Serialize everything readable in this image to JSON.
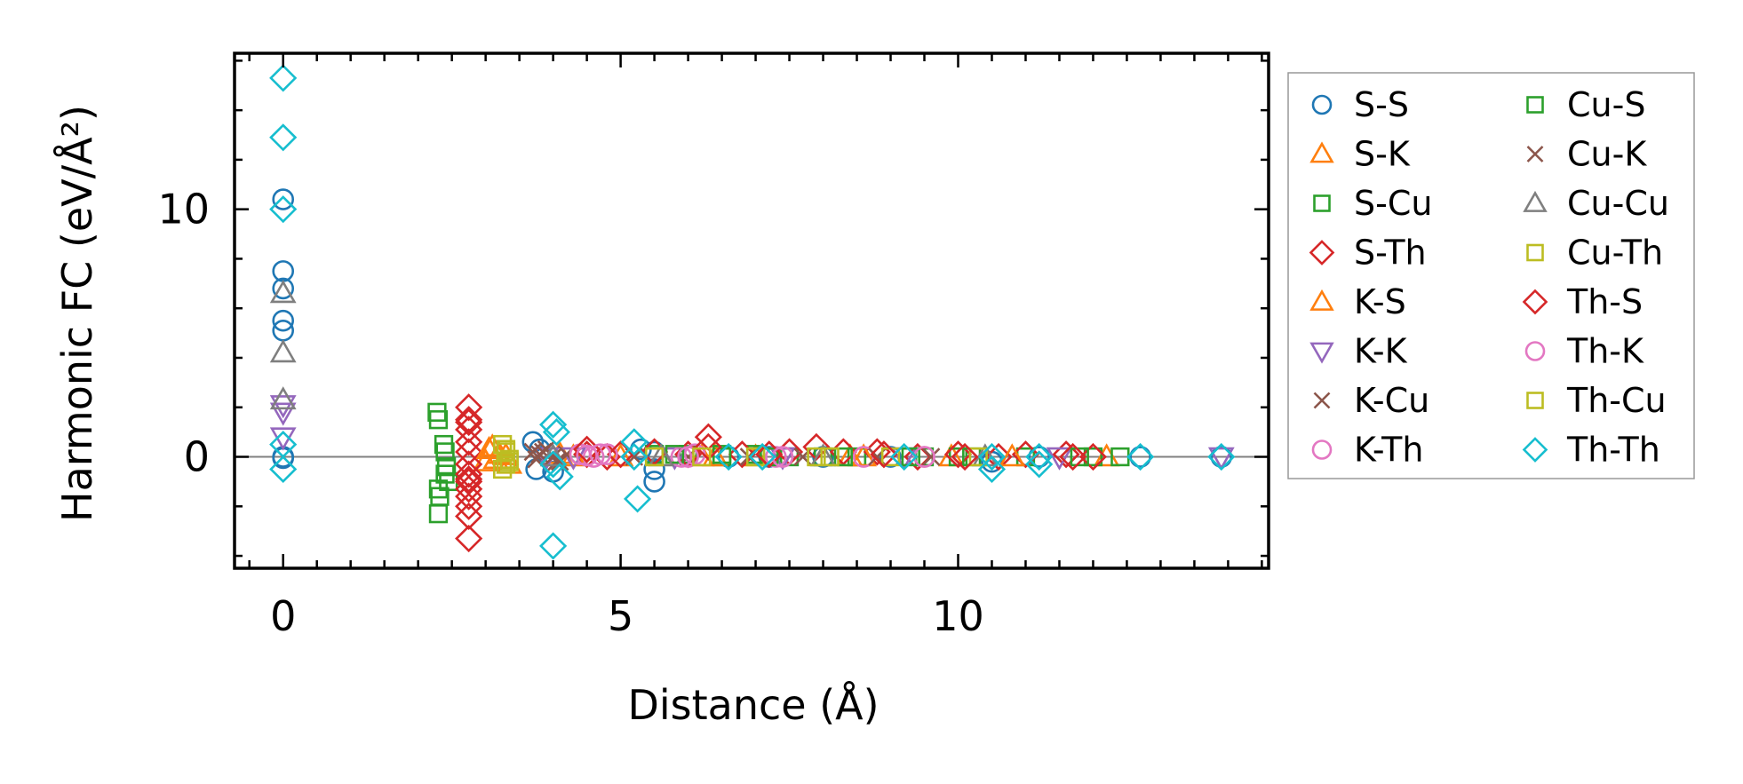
{
  "chart_data": {
    "type": "scatter",
    "title": "",
    "xlabel": "Distance (Å)",
    "ylabel": "Harmonic FC (eV/Å²)",
    "xlim": [
      -0.72,
      14.6
    ],
    "ylim": [
      -4.5,
      16.3
    ],
    "xticks": [
      0,
      5,
      10
    ],
    "yticks": [
      0,
      10
    ],
    "xtick_labels": [
      "0",
      "5",
      "10"
    ],
    "ytick_labels": [
      "0",
      "10"
    ],
    "zero_line": true,
    "grid": false,
    "legend_position": "right-outside",
    "legend_columns": 2,
    "series": [
      {
        "name": "S-S",
        "marker": "circle",
        "color": "#1f77b4",
        "x": [
          0,
          0,
          0,
          0,
          0,
          0,
          0,
          3.7,
          3.75,
          3.8,
          4.0,
          5.3,
          5.5,
          5.5,
          5.5,
          6.6,
          7.2,
          8.0,
          9.0,
          10.5,
          11.2,
          12.7,
          13.9
        ],
        "y": [
          10.4,
          7.5,
          6.8,
          5.5,
          5.1,
          0,
          -0.05,
          0.6,
          -0.5,
          0.3,
          -0.6,
          0.3,
          -0.5,
          -1.0,
          0.2,
          0,
          0,
          0,
          0,
          -0.2,
          0,
          0,
          0
        ]
      },
      {
        "name": "S-K",
        "marker": "triangle-up",
        "color": "#ff7f0e",
        "x": [
          3.0,
          3.1,
          3.2,
          3.35,
          4.1,
          5.0,
          6.2,
          7.0,
          8.4,
          9.9,
          12.2
        ],
        "y": [
          -0.2,
          0.4,
          0.1,
          -0.3,
          0.1,
          0,
          0,
          0,
          0,
          0,
          0
        ]
      },
      {
        "name": "S-Cu",
        "marker": "square",
        "color": "#2ca02c",
        "x": [
          2.28,
          2.3,
          2.3,
          2.32,
          2.3,
          2.38,
          2.4,
          2.42,
          2.4,
          2.45,
          5.5,
          6.0,
          6.5,
          7.0,
          7.5,
          8.0,
          8.5,
          9.5,
          10.0,
          11.0,
          12.0
        ],
        "y": [
          1.8,
          1.5,
          -1.3,
          -1.6,
          -2.3,
          0.5,
          0.2,
          -0.4,
          -0.7,
          -1.0,
          0.1,
          0.1,
          0,
          0.1,
          0,
          0,
          0,
          0,
          0,
          0,
          0
        ]
      },
      {
        "name": "S-Th",
        "marker": "diamond",
        "color": "#d62728",
        "x": [
          2.75,
          2.75,
          2.75,
          2.75,
          2.75,
          2.75,
          2.75,
          2.75,
          2.75,
          2.75,
          2.75,
          2.75,
          2.75,
          4.5,
          4.8,
          5.5,
          6.0,
          6.3,
          6.8,
          7.5,
          7.9,
          8.3,
          8.8,
          9.4,
          10.0,
          10.6,
          11.0,
          11.6,
          12.0
        ],
        "y": [
          2.0,
          1.5,
          1.1,
          0.6,
          0.2,
          -0.3,
          -0.7,
          -1.0,
          -1.3,
          -1.6,
          -2.0,
          -2.4,
          -3.3,
          0.1,
          0,
          0.2,
          0.1,
          0.8,
          0.1,
          0.2,
          0.4,
          0.2,
          0.2,
          0,
          0.1,
          0,
          0.1,
          0.1,
          0
        ]
      },
      {
        "name": "K-S",
        "marker": "triangle-up",
        "color": "#ff7f0e",
        "x": [
          3.05,
          3.15,
          3.3,
          4.3,
          6.4,
          8.6,
          10.8
        ],
        "y": [
          0.3,
          -0.1,
          0.05,
          0,
          0,
          0,
          0
        ]
      },
      {
        "name": "K-K",
        "marker": "triangle-down",
        "color": "#9467bd",
        "x": [
          0,
          0,
          0,
          3.9,
          4.3,
          5.8,
          7.4,
          9.2,
          11.5,
          13.9
        ],
        "y": [
          2.1,
          1.8,
          0.8,
          0,
          0,
          0,
          0,
          0,
          0,
          0
        ]
      },
      {
        "name": "K-Cu",
        "marker": "x",
        "color": "#8c564b",
        "x": [
          3.7,
          3.75,
          3.8,
          3.9,
          4.0,
          4.1,
          4.2,
          6.0,
          7.7,
          9.6
        ],
        "y": [
          0.2,
          -0.1,
          0.1,
          0.3,
          0,
          -0.2,
          0.1,
          0,
          0,
          0
        ]
      },
      {
        "name": "K-Th",
        "marker": "circle",
        "color": "#e377c2",
        "x": [
          4.4,
          4.6,
          4.8,
          5.9,
          6.1,
          7.3,
          8.6,
          9.5
        ],
        "y": [
          0.1,
          0,
          0.1,
          0,
          0.1,
          0,
          0,
          0
        ]
      },
      {
        "name": "Cu-S",
        "marker": "square",
        "color": "#2ca02c",
        "x": [
          5.8,
          6.5,
          7.2,
          8.3,
          9.3,
          10.2,
          11.8,
          12.4
        ],
        "y": [
          0.1,
          0.1,
          0,
          0,
          0,
          0,
          0,
          0
        ]
      },
      {
        "name": "Cu-K",
        "marker": "x",
        "color": "#8c564b",
        "x": [
          3.85,
          4.05,
          5.2,
          6.9,
          8.8
        ],
        "y": [
          0.2,
          -0.2,
          0,
          0,
          0
        ]
      },
      {
        "name": "Cu-Cu",
        "marker": "triangle-up",
        "color": "#7f7f7f",
        "x": [
          0,
          0,
          0,
          4.0,
          5.6,
          8.0,
          10.4
        ],
        "y": [
          6.6,
          4.2,
          2.3,
          0,
          0,
          0,
          0
        ]
      },
      {
        "name": "Cu-Th",
        "marker": "square",
        "color": "#bcbd22",
        "x": [
          3.25,
          3.3,
          3.35,
          3.3,
          3.25,
          5.5,
          7.0,
          7.9,
          9.0,
          10.3
        ],
        "y": [
          0.5,
          0.2,
          -0.1,
          -0.3,
          -0.5,
          0,
          0,
          0,
          0,
          0
        ]
      },
      {
        "name": "Th-S",
        "marker": "diamond",
        "color": "#d62728",
        "x": [
          2.75,
          2.75,
          4.5,
          5.0,
          6.3,
          7.2,
          8.9,
          10.1,
          11.7
        ],
        "y": [
          1.4,
          -0.9,
          0.3,
          0.1,
          0.4,
          0.1,
          0.1,
          0,
          0
        ]
      },
      {
        "name": "Th-K",
        "marker": "circle",
        "color": "#e377c2",
        "x": [
          4.5,
          4.7,
          6.0,
          7.4,
          9.5
        ],
        "y": [
          0.05,
          0.1,
          0,
          0,
          0
        ]
      },
      {
        "name": "Th-Cu",
        "marker": "square",
        "color": "#bcbd22",
        "x": [
          3.3,
          3.35,
          6.2,
          8.1
        ],
        "y": [
          0.3,
          -0.2,
          0,
          0
        ]
      },
      {
        "name": "Th-Th",
        "marker": "diamond",
        "color": "#17becf",
        "x": [
          0,
          0,
          0,
          0,
          0,
          4.0,
          4.05,
          4.0,
          4.1,
          4.0,
          5.2,
          5.2,
          5.25,
          6.6,
          7.1,
          9.2,
          10.5,
          10.5,
          11.2,
          11.2,
          12.7,
          13.9
        ],
        "y": [
          15.3,
          12.9,
          10.0,
          0.5,
          -0.5,
          1.3,
          1.0,
          -0.3,
          -0.8,
          -3.6,
          0.6,
          0,
          -1.7,
          0,
          0,
          0,
          0,
          -0.5,
          0,
          -0.3,
          0,
          0
        ]
      }
    ]
  }
}
